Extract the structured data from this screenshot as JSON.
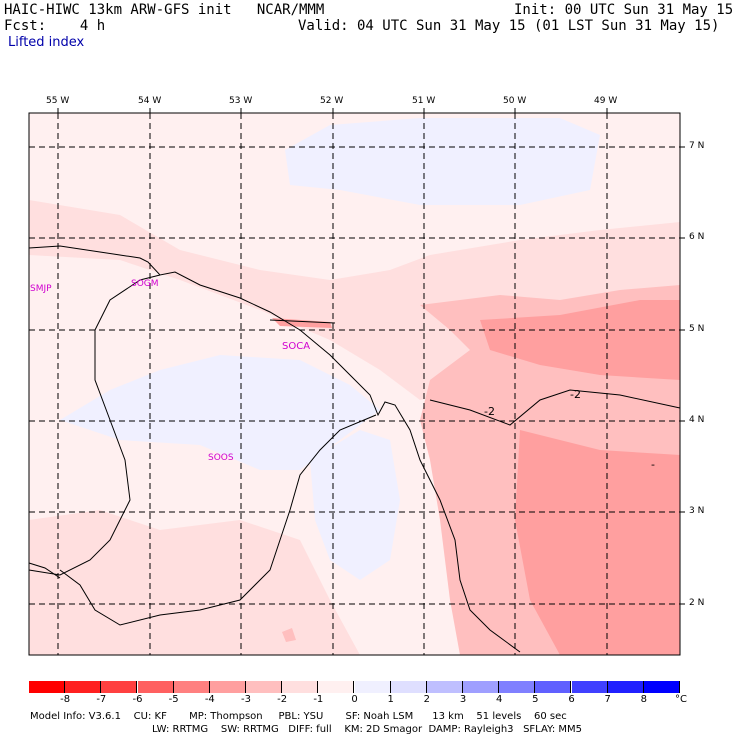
{
  "header": {
    "model_title": "HAIC-HIWC 13km ARW-GFS init   NCAR/MMM",
    "init": "Init: 00 UTC Sun 31 May 15",
    "fcst": "Fcst:    4 h",
    "valid": "Valid: 04 UTC Sun 31 May 15 (01 LST Sun 31 May 15)",
    "field": "Lifted index"
  },
  "axes": {
    "longitudes": [
      "55 W",
      "54 W",
      "53 W",
      "52 W",
      "51 W",
      "50 W",
      "49 W"
    ],
    "latitudes": [
      "7 N",
      "6 N",
      "5 N",
      "4 N",
      "3 N",
      "2 N"
    ]
  },
  "stations": [
    "SMJP",
    "SOGM",
    "SOCA",
    "SOOS"
  ],
  "contour_labels": [
    "-2",
    "-2",
    "-"
  ],
  "colorbar": {
    "labels": [
      "-8",
      "-7",
      "-6",
      "-5",
      "-4",
      "-3",
      "-2",
      "-1",
      "0",
      "1",
      "2",
      "3",
      "4",
      "5",
      "6",
      "7",
      "8"
    ],
    "unit": "°C",
    "colors": [
      "#ff0000",
      "#ff2020",
      "#ff4040",
      "#ff6060",
      "#ff8080",
      "#ff9f9f",
      "#ffbfbf",
      "#ffdfdf",
      "#fff0f0",
      "#f0f0ff",
      "#dfdfff",
      "#bfbfff",
      "#9f9fff",
      "#8080ff",
      "#6060ff",
      "#4040ff",
      "#2020ff",
      "#0000ff"
    ]
  },
  "model_info": {
    "line1": "Model Info: V3.6.1    CU: KF       MP: Thompson     PBL: YSU       SF: Noah LSM      13 km    51 levels    60 sec",
    "line2": "LW: RRTMG    SW: RRTMG   DIFF: full    KM: 2D Smagor  DAMP: Rayleigh3   SFLAY: MM5"
  }
}
